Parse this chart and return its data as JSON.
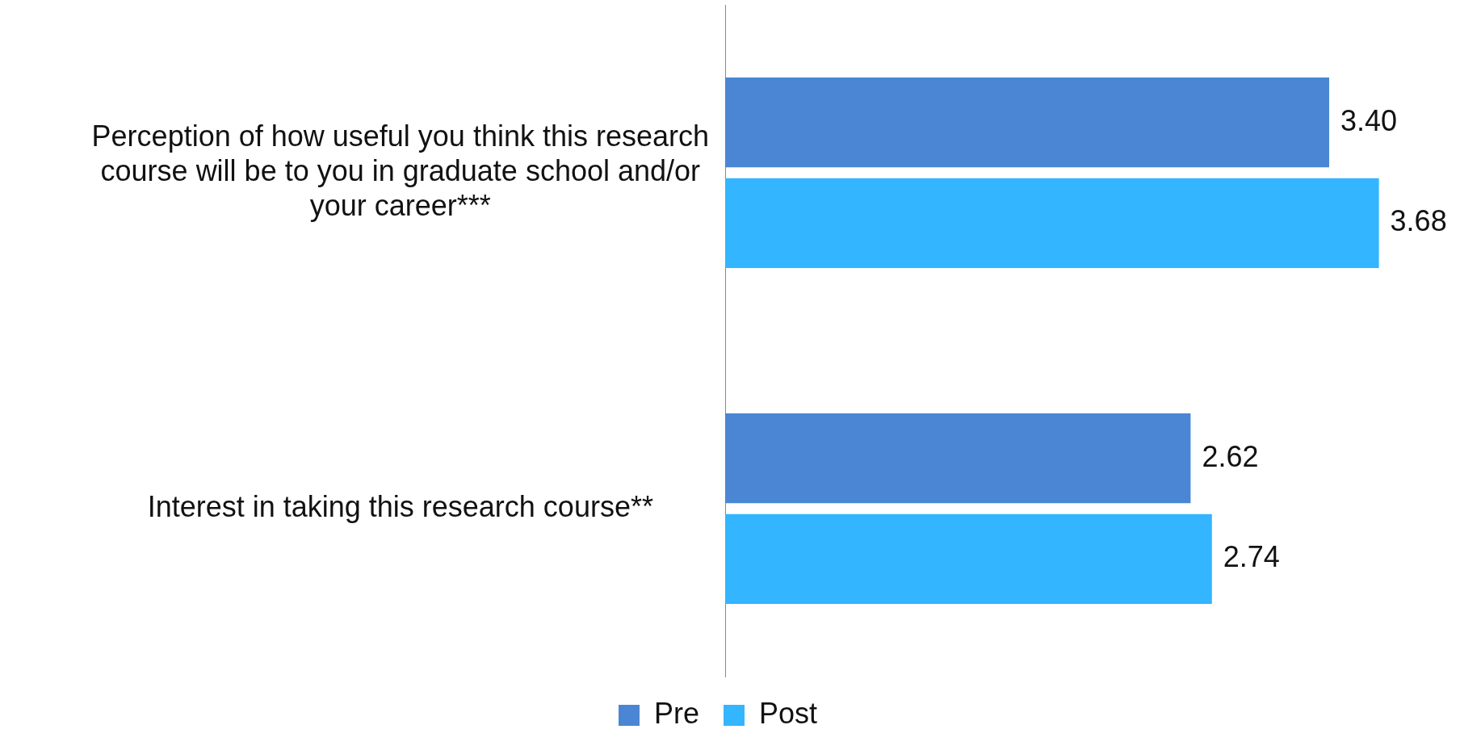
{
  "chart_data": {
    "type": "bar",
    "orientation": "horizontal",
    "categories": [
      "Perception of how useful you think this research course will be to you in graduate school and/or your career***",
      "Interest in taking this research course**"
    ],
    "series": [
      {
        "name": "Pre",
        "color": "#4a86d4",
        "values": [
          3.4,
          2.62
        ],
        "value_labels": [
          "3.40",
          "2.62"
        ]
      },
      {
        "name": "Post",
        "color": "#33b5ff",
        "values": [
          3.68,
          2.74
        ],
        "value_labels": [
          "3.68",
          "2.74"
        ]
      }
    ],
    "legend": "bottom",
    "grid": false,
    "tick_labels": "y"
  }
}
